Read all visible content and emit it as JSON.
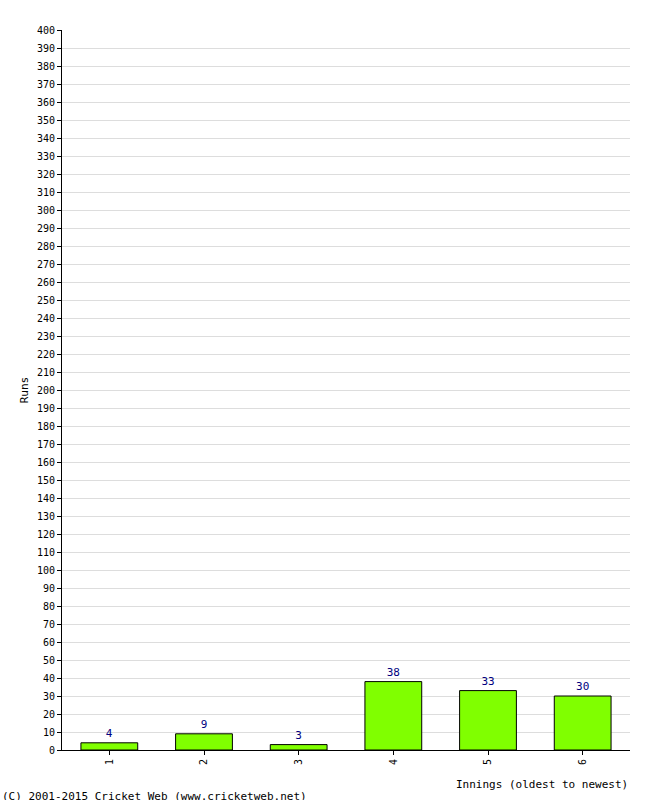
{
  "chart_data": {
    "type": "bar",
    "x_label": "Innings (oldest to newest)",
    "y_label": "Runs",
    "categories": [
      "1",
      "2",
      "3",
      "4",
      "5",
      "6"
    ],
    "values": [
      4,
      9,
      3,
      38,
      33,
      30
    ],
    "color": "#80ff00",
    "data_labels": true,
    "ylim": [
      0,
      400
    ],
    "yticks": [
      0,
      10,
      20,
      30,
      40,
      50,
      60,
      70,
      80,
      90,
      100,
      110,
      120,
      130,
      140,
      150,
      160,
      170,
      180,
      190,
      200,
      210,
      220,
      230,
      240,
      250,
      260,
      270,
      280,
      290,
      300,
      310,
      320,
      330,
      340,
      350,
      360,
      370,
      380,
      390,
      400
    ],
    "grid": true,
    "annotations": [
      "(C) 2001-2015 Cricket Web (www.cricketweb.net)"
    ]
  }
}
